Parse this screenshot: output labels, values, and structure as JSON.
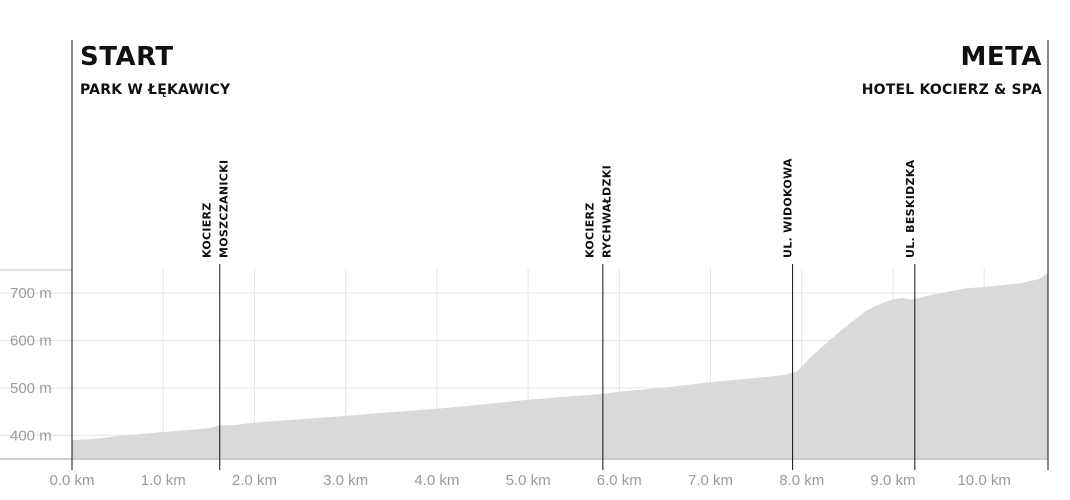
{
  "header": {
    "start_title": "START",
    "start_subtitle": "PARK W ŁĘKAWICY",
    "finish_title": "META",
    "finish_subtitle": "HOTEL KOCIERZ & SPA"
  },
  "chart_data": {
    "type": "area",
    "title": "",
    "xlabel": "",
    "ylabel": "",
    "xlim": [
      0,
      10.7
    ],
    "ylim": [
      350,
      750
    ],
    "x_ticks": [
      "0.0 km",
      "1.0 km",
      "2.0 km",
      "3.0 km",
      "4.0 km",
      "5.0 km",
      "6.0 km",
      "7.0 km",
      "8.0 km",
      "9.0 km",
      "10.0 km"
    ],
    "x_tick_values": [
      0,
      1,
      2,
      3,
      4,
      5,
      6,
      7,
      8,
      9,
      10
    ],
    "y_ticks": [
      "400 m",
      "500 m",
      "600 m",
      "700 m"
    ],
    "y_tick_values": [
      400,
      500,
      600,
      700
    ],
    "grid": true,
    "fill_color": "#d9d9d9",
    "grid_color": "#e6e6e6",
    "marker_color": "#111111",
    "series": [
      {
        "x": [
          0,
          0.2,
          0.5,
          1.0,
          1.5,
          1.6,
          1.8,
          2.0,
          2.5,
          3.0,
          3.5,
          4.0,
          4.5,
          5.0,
          5.5,
          5.8,
          6.0,
          6.5,
          7.0,
          7.5,
          7.8,
          7.95,
          8.1,
          8.3,
          8.5,
          8.7,
          8.8,
          8.9,
          9.0,
          9.1,
          9.2,
          9.4,
          9.6,
          9.8,
          10.0,
          10.2,
          10.4,
          10.6,
          10.7
        ],
        "y": [
          390,
          392,
          398,
          407,
          415,
          420,
          422,
          427,
          434,
          441,
          449,
          456,
          465,
          475,
          483,
          487,
          492,
          501,
          512,
          521,
          527,
          535,
          565,
          600,
          632,
          662,
          672,
          680,
          687,
          690,
          686,
          695,
          703,
          710,
          713,
          717,
          721,
          730,
          742
        ]
      }
    ],
    "waypoints": [
      {
        "x": 1.62,
        "label_lines": [
          "KOCIERZ",
          "MOSZCZANICKI"
        ]
      },
      {
        "x": 5.82,
        "label_lines": [
          "KOCIERZ",
          "RYCHWAŁDZKI"
        ]
      },
      {
        "x": 7.9,
        "label_lines": [
          "UL. WIDOKOWA"
        ]
      },
      {
        "x": 9.24,
        "label_lines": [
          "UL. BESKIDZKA"
        ]
      }
    ]
  }
}
